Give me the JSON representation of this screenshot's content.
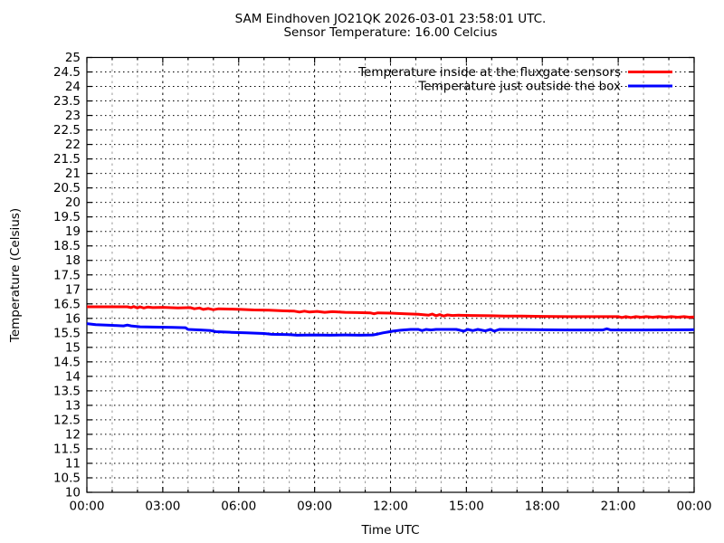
{
  "chart_data": {
    "type": "line",
    "title": "SAM Eindhoven JO21QK 2026-03-01 23:58:01 UTC.",
    "subtitle": "Sensor Temperature: 16.00 Celcius",
    "xlabel": "Time UTC",
    "ylabel": "Temperature (Celsius)",
    "xlim_hours": [
      0,
      24
    ],
    "ylim": [
      10,
      25
    ],
    "y_tick_step": 0.5,
    "x_major_step_hours": 3,
    "x_minor_step_hours": 1,
    "grid": true,
    "legend_position": "top-right-inside",
    "x_ticks": [
      {
        "hour": 0,
        "label": "00:00"
      },
      {
        "hour": 3,
        "label": "03:00"
      },
      {
        "hour": 6,
        "label": "06:00"
      },
      {
        "hour": 9,
        "label": "09:00"
      },
      {
        "hour": 12,
        "label": "12:00"
      },
      {
        "hour": 15,
        "label": "15:00"
      },
      {
        "hour": 18,
        "label": "18:00"
      },
      {
        "hour": 21,
        "label": "21:00"
      },
      {
        "hour": 24,
        "label": "00:00"
      }
    ],
    "series": [
      {
        "name": "Temperature inside at the fluxgate sensors",
        "color": "#ff0000",
        "points": [
          [
            0,
            16.4
          ],
          [
            1.6,
            16.4
          ],
          [
            1.75,
            16.37
          ],
          [
            1.85,
            16.41
          ],
          [
            2.0,
            16.36
          ],
          [
            2.1,
            16.4
          ],
          [
            2.25,
            16.36
          ],
          [
            2.4,
            16.39
          ],
          [
            2.6,
            16.37
          ],
          [
            3.0,
            16.38
          ],
          [
            3.6,
            16.36
          ],
          [
            4.1,
            16.37
          ],
          [
            4.25,
            16.33
          ],
          [
            4.45,
            16.36
          ],
          [
            4.6,
            16.31
          ],
          [
            4.8,
            16.34
          ],
          [
            5.0,
            16.3
          ],
          [
            5.2,
            16.33
          ],
          [
            5.6,
            16.32
          ],
          [
            6.1,
            16.31
          ],
          [
            6.6,
            16.29
          ],
          [
            7.2,
            16.28
          ],
          [
            7.8,
            16.26
          ],
          [
            8.2,
            16.25
          ],
          [
            8.4,
            16.22
          ],
          [
            8.6,
            16.25
          ],
          [
            8.8,
            16.22
          ],
          [
            9.1,
            16.24
          ],
          [
            9.4,
            16.21
          ],
          [
            9.7,
            16.23
          ],
          [
            10.2,
            16.21
          ],
          [
            10.7,
            16.2
          ],
          [
            11.2,
            16.19
          ],
          [
            11.35,
            16.16
          ],
          [
            11.5,
            16.19
          ],
          [
            12.0,
            16.18
          ],
          [
            12.6,
            16.16
          ],
          [
            13.1,
            16.14
          ],
          [
            13.5,
            16.11
          ],
          [
            13.65,
            16.15
          ],
          [
            13.8,
            16.09
          ],
          [
            13.95,
            16.13
          ],
          [
            14.1,
            16.08
          ],
          [
            14.25,
            16.12
          ],
          [
            14.45,
            16.1
          ],
          [
            14.7,
            16.11
          ],
          [
            15.2,
            16.1
          ],
          [
            16.0,
            16.09
          ],
          [
            16.5,
            16.08
          ],
          [
            17.2,
            16.08
          ],
          [
            18.0,
            16.07
          ],
          [
            19.0,
            16.06
          ],
          [
            20.0,
            16.06
          ],
          [
            21.0,
            16.06
          ],
          [
            21.15,
            16.03
          ],
          [
            21.3,
            16.06
          ],
          [
            21.5,
            16.03
          ],
          [
            21.7,
            16.06
          ],
          [
            21.9,
            16.04
          ],
          [
            22.1,
            16.06
          ],
          [
            22.35,
            16.04
          ],
          [
            22.6,
            16.06
          ],
          [
            22.85,
            16.04
          ],
          [
            23.1,
            16.06
          ],
          [
            23.35,
            16.04
          ],
          [
            23.6,
            16.06
          ],
          [
            23.8,
            16.04
          ],
          [
            24,
            16.05
          ]
        ]
      },
      {
        "name": "Temperature just outside the box",
        "color": "#0000ff",
        "points": [
          [
            0,
            15.82
          ],
          [
            0.35,
            15.78
          ],
          [
            1.0,
            15.76
          ],
          [
            1.45,
            15.74
          ],
          [
            1.6,
            15.77
          ],
          [
            1.75,
            15.74
          ],
          [
            2.1,
            15.71
          ],
          [
            2.6,
            15.7
          ],
          [
            3.4,
            15.69
          ],
          [
            3.9,
            15.68
          ],
          [
            4.0,
            15.62
          ],
          [
            4.5,
            15.6
          ],
          [
            4.9,
            15.58
          ],
          [
            5.1,
            15.54
          ],
          [
            5.7,
            15.52
          ],
          [
            6.3,
            15.5
          ],
          [
            7.0,
            15.48
          ],
          [
            7.3,
            15.45
          ],
          [
            8.0,
            15.44
          ],
          [
            8.3,
            15.42
          ],
          [
            9.0,
            15.43
          ],
          [
            9.6,
            15.42
          ],
          [
            10.2,
            15.43
          ],
          [
            10.8,
            15.42
          ],
          [
            11.3,
            15.43
          ],
          [
            11.5,
            15.46
          ],
          [
            11.7,
            15.5
          ],
          [
            11.9,
            15.53
          ],
          [
            12.1,
            15.56
          ],
          [
            12.4,
            15.59
          ],
          [
            12.8,
            15.62
          ],
          [
            13.1,
            15.62
          ],
          [
            13.25,
            15.58
          ],
          [
            13.4,
            15.62
          ],
          [
            13.6,
            15.6
          ],
          [
            13.8,
            15.62
          ],
          [
            14.6,
            15.62
          ],
          [
            14.9,
            15.56
          ],
          [
            15.05,
            15.62
          ],
          [
            15.25,
            15.58
          ],
          [
            15.45,
            15.62
          ],
          [
            15.75,
            15.57
          ],
          [
            15.95,
            15.62
          ],
          [
            16.1,
            15.56
          ],
          [
            16.3,
            15.62
          ],
          [
            17.5,
            15.61
          ],
          [
            19.0,
            15.6
          ],
          [
            20.4,
            15.6
          ],
          [
            20.55,
            15.64
          ],
          [
            20.7,
            15.6
          ],
          [
            22.0,
            15.6
          ],
          [
            24,
            15.61
          ]
        ]
      }
    ]
  },
  "colors": {
    "background": "#ffffff",
    "axis": "#000000",
    "major_grid": "#000000",
    "minor_grid": "#9a9a9a",
    "series_inside": "#ff0000",
    "series_outside": "#0000ff"
  }
}
